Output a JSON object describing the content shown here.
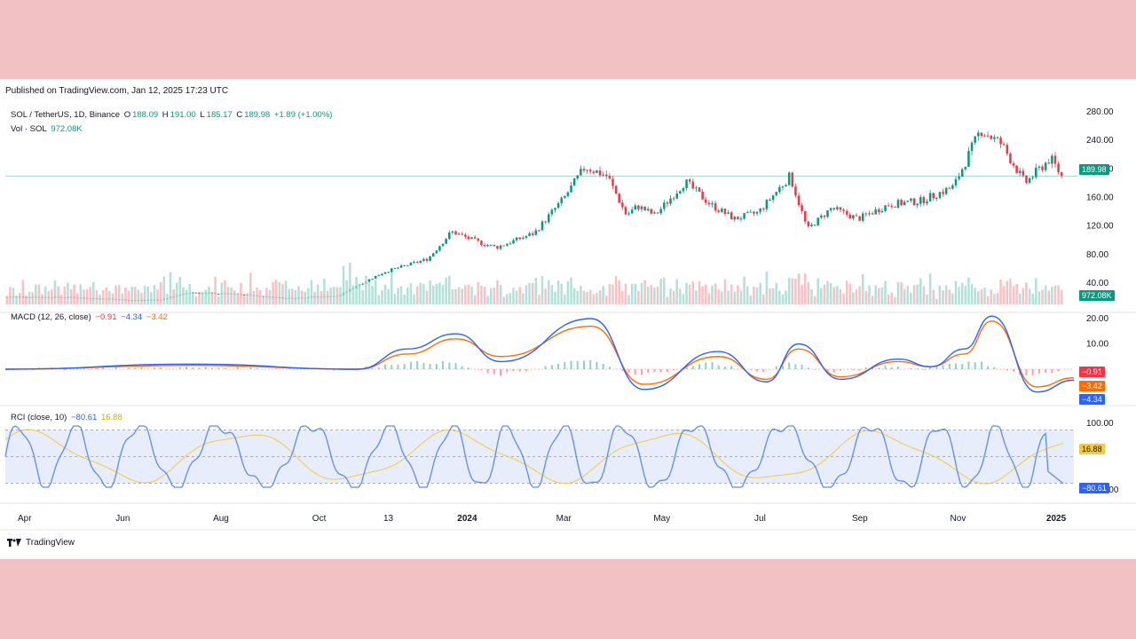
{
  "header": {
    "published": "Published on TradingView.com, Jan 12, 2025 17:23 UTC"
  },
  "legend": {
    "symbol": "SOL / TetherUS, 1D, Binance",
    "o_label": "O",
    "o_value": "188.09",
    "h_label": "H",
    "h_value": "191.00",
    "l_label": "L",
    "l_value": "185.17",
    "c_label": "C",
    "c_value": "189.98",
    "change": "+1.89 (+1.00%)",
    "vol_label": "Vol · SOL",
    "vol_value": "972.08K",
    "macd_label": "MACD (12, 26, close)",
    "macd_hist": "−0.91",
    "macd_line": "−4.34",
    "macd_signal": "−3.42",
    "rci_label": "RCI (close, 10)",
    "rci_value": "−80.61",
    "rci_signal": "16.88"
  },
  "tags": {
    "price": "189.98",
    "volume": "972.08K",
    "macd_hist": "−0.91",
    "macd_signal": "−3.42",
    "macd_line": "−4.34",
    "rci_signal": "16.88",
    "rci_value": "−80.61"
  },
  "footer": {
    "brand": "TradingView"
  },
  "colors": {
    "up": "#089981",
    "down": "#f23645",
    "macd": "#2962ff",
    "signal": "#ff6d00",
    "rci": "#5b8def",
    "rci_signal": "#f5c842",
    "rci_band": "#e8edfb",
    "price_line": "#9ed4cc"
  },
  "chart_data": [
    {
      "type": "candlestick",
      "title": "SOL / TetherUS, 1D, Binance",
      "y_ticks": [
        "280.00",
        "240.00",
        "200.00",
        "160.00",
        "120.00",
        "80.00",
        "40.00"
      ],
      "ylim": [
        0,
        290
      ],
      "last_close": 189.98,
      "x_ticks": [
        "Apr",
        "Jun",
        "Aug",
        "Oct",
        "13",
        "2024",
        "Mar",
        "May",
        "Jul",
        "Sep",
        "Nov",
        "2025"
      ],
      "x_tick_dates": [
        "2023-04-01",
        "2023-06-01",
        "2023-08-01",
        "2023-10-01",
        "2023-11-13",
        "2024-01-01",
        "2024-03-01",
        "2024-05-01",
        "2024-07-01",
        "2024-09-01",
        "2024-11-01",
        "2025-01-01"
      ],
      "x_range": [
        "2023-03-20",
        "2025-01-12"
      ],
      "date": [
        "2023-03-20",
        "2023-05-01",
        "2023-06-10",
        "2023-06-25",
        "2023-07-14",
        "2023-08-15",
        "2023-09-11",
        "2023-10-15",
        "2023-10-25",
        "2023-11-13",
        "2023-12-10",
        "2023-12-25",
        "2024-01-10",
        "2024-01-22",
        "2024-02-15",
        "2024-03-05",
        "2024-03-18",
        "2024-04-01",
        "2024-04-13",
        "2024-04-20",
        "2024-05-01",
        "2024-05-20",
        "2024-06-05",
        "2024-06-20",
        "2024-07-05",
        "2024-07-25",
        "2024-08-05",
        "2024-08-20",
        "2024-09-06",
        "2024-09-25",
        "2024-10-15",
        "2024-11-05",
        "2024-11-22",
        "2024-12-05",
        "2024-12-20",
        "2025-01-05",
        "2025-01-12"
      ],
      "close": [
        21,
        20,
        16,
        17,
        27,
        24,
        19,
        22,
        35,
        56,
        74,
        112,
        98,
        90,
        110,
        160,
        203,
        190,
        135,
        148,
        135,
        182,
        150,
        130,
        139,
        190,
        115,
        145,
        130,
        150,
        155,
        175,
        255,
        235,
        180,
        215,
        189.98
      ],
      "volume_label": "Vol · SOL",
      "volume_last": "972.08K"
    },
    {
      "type": "line",
      "title": "MACD (12, 26, close)",
      "y_ticks": [
        "20.00",
        "10.00"
      ],
      "ylim": [
        -12,
        22
      ],
      "series": [
        {
          "name": "MACD",
          "date": [
            "2023-03-20",
            "2023-07-14",
            "2023-10-25",
            "2023-11-25",
            "2023-12-25",
            "2024-01-22",
            "2024-03-18",
            "2024-04-20",
            "2024-06-05",
            "2024-07-05",
            "2024-07-25",
            "2024-08-20",
            "2024-09-25",
            "2024-10-15",
            "2024-11-05",
            "2024-11-22",
            "2024-12-20",
            "2025-01-12"
          ],
          "values": [
            0,
            2,
            0,
            8,
            14,
            3,
            20,
            -8,
            7,
            -5,
            10,
            -4,
            4,
            1,
            8,
            21,
            -9,
            -4.34
          ]
        },
        {
          "name": "Signal",
          "date": [
            "2023-03-20",
            "2023-07-14",
            "2023-10-25",
            "2023-11-25",
            "2023-12-25",
            "2024-01-22",
            "2024-03-18",
            "2024-04-20",
            "2024-06-05",
            "2024-07-05",
            "2024-07-25",
            "2024-08-20",
            "2024-09-25",
            "2024-10-15",
            "2024-11-05",
            "2024-11-22",
            "2024-12-20",
            "2025-01-12"
          ],
          "values": [
            0,
            1.5,
            0,
            6,
            12,
            5,
            17,
            -6,
            5,
            -4,
            8,
            -3,
            3,
            1,
            6,
            19,
            -7,
            -3.42
          ]
        }
      ],
      "histogram_last": -0.91
    },
    {
      "type": "line",
      "title": "RCI (close, 10)",
      "y_ticks": [
        "100.00",
        "−100.00"
      ],
      "ylim": [
        -100,
        100
      ],
      "series": [
        {
          "name": "RCI",
          "last": -80.61
        },
        {
          "name": "Signal",
          "last": 16.88
        }
      ]
    }
  ]
}
